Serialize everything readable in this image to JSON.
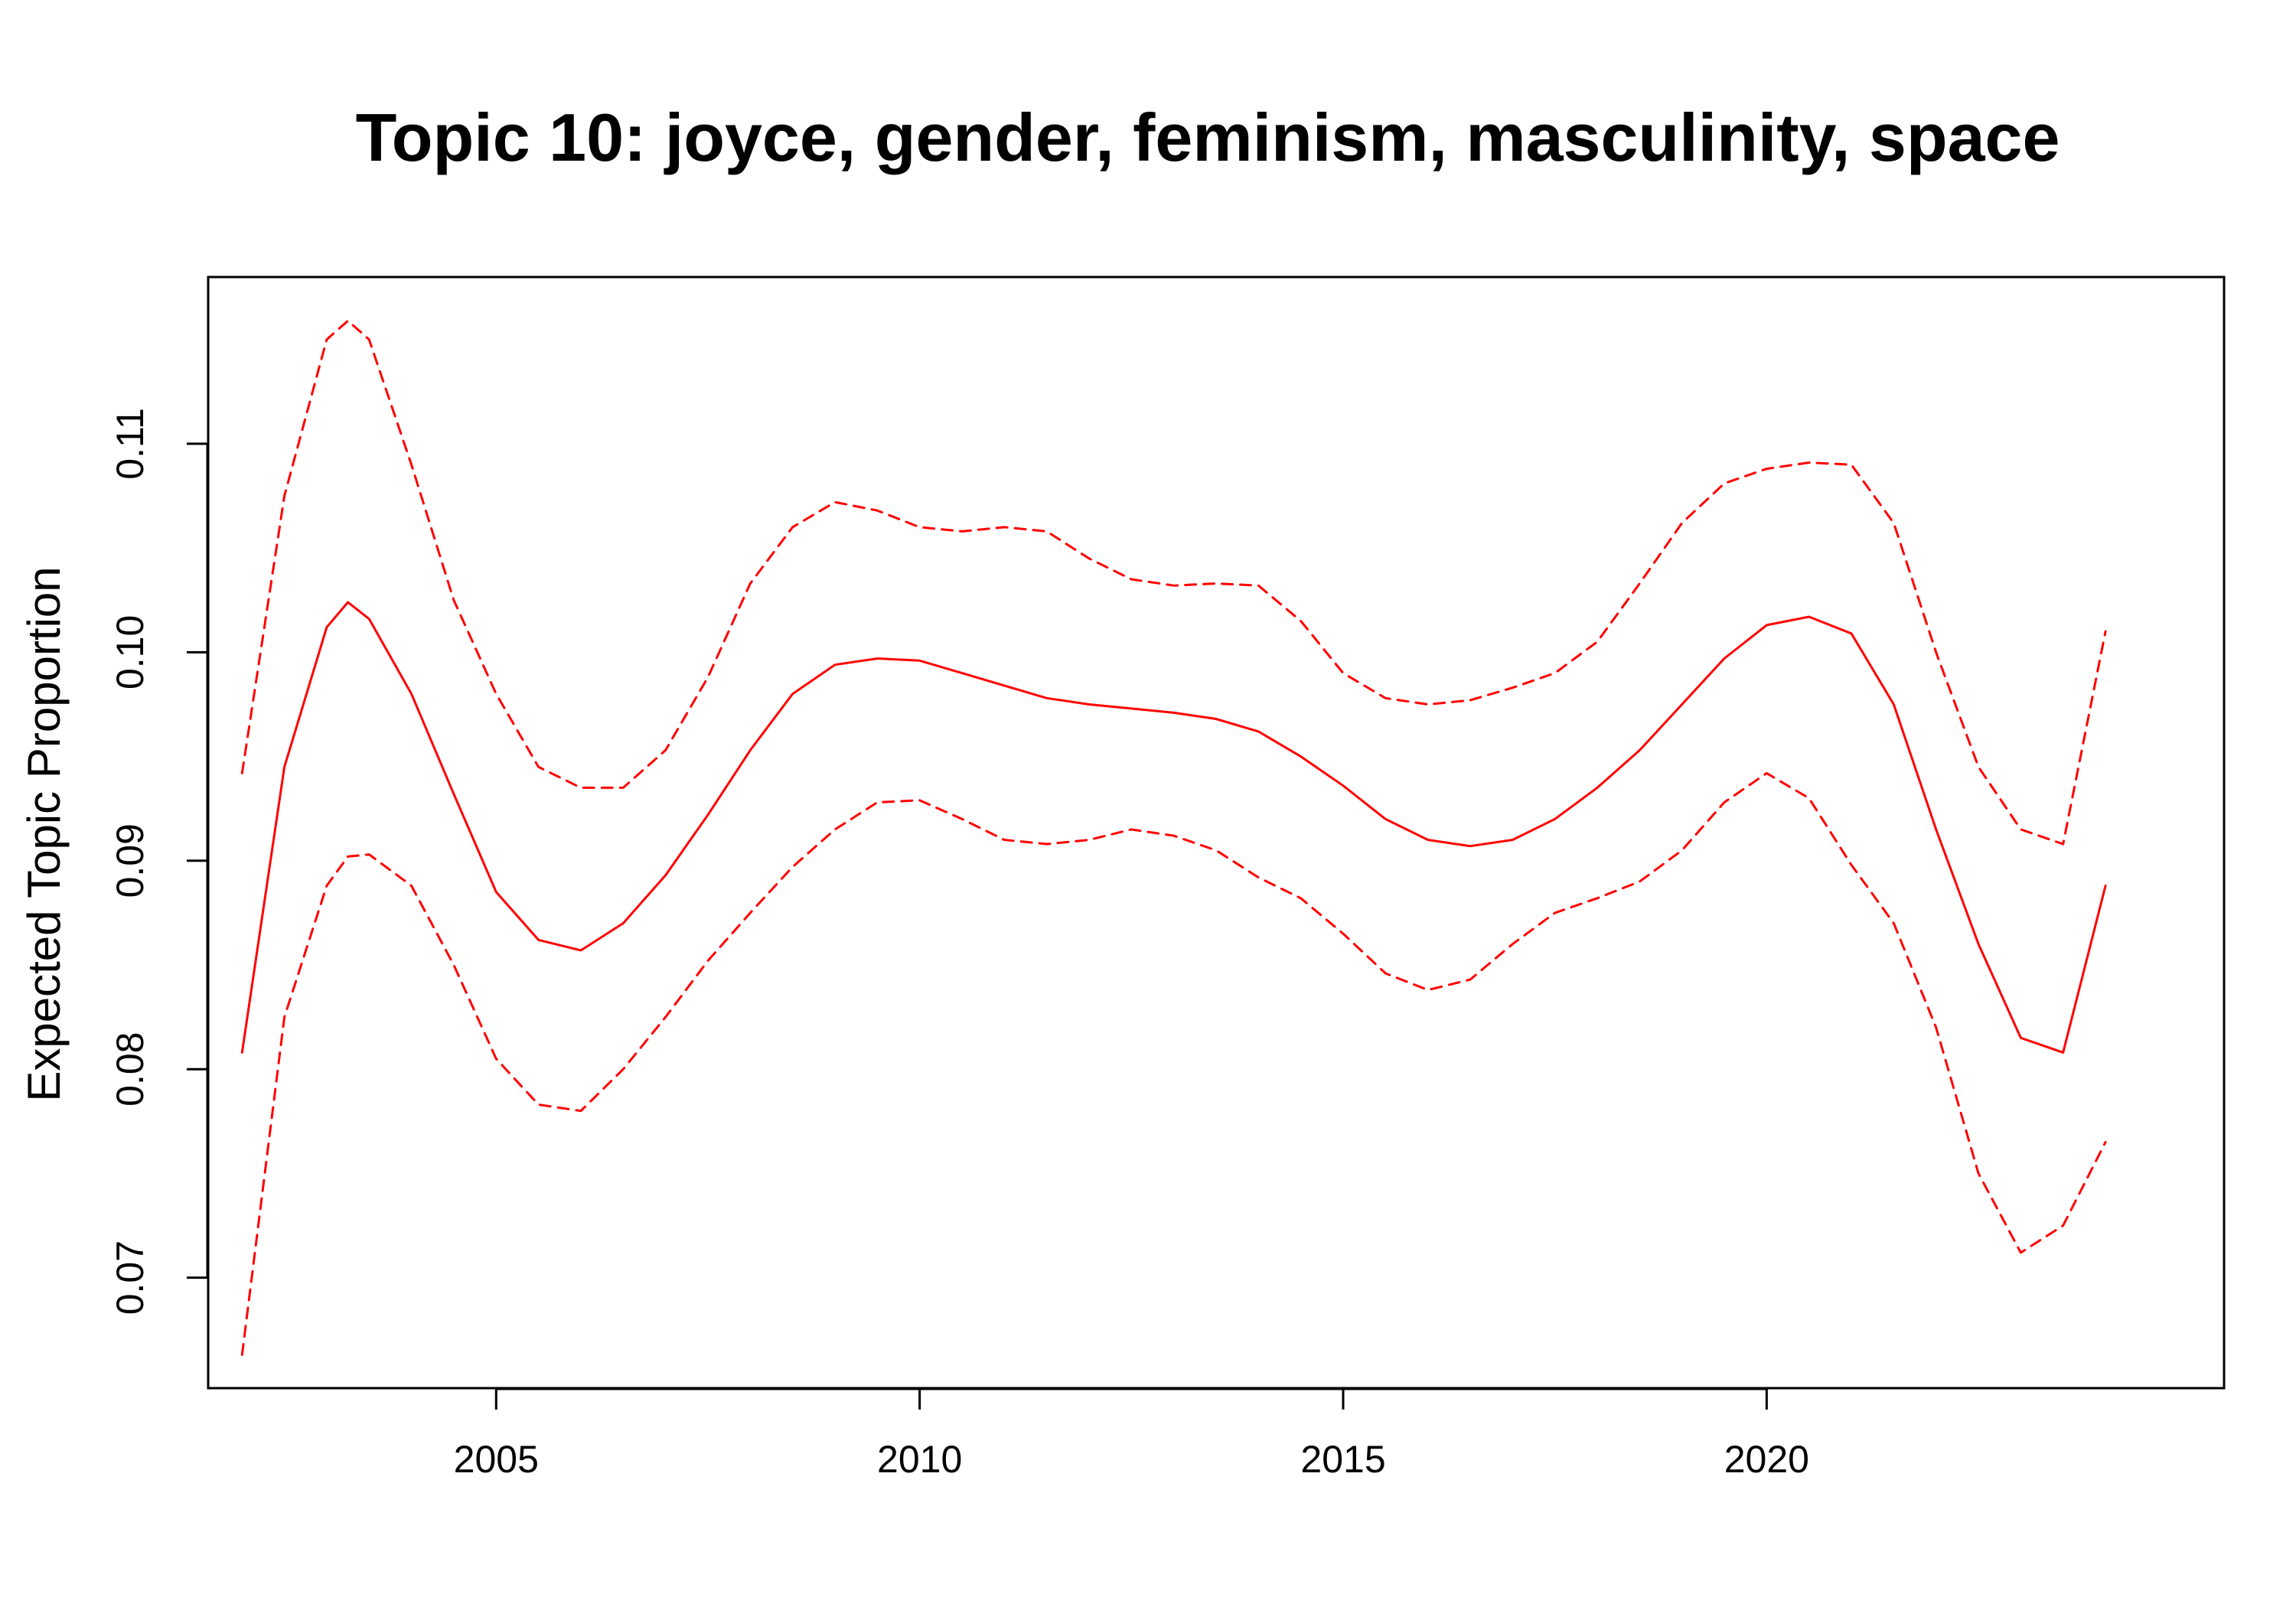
{
  "chart_data": {
    "type": "line",
    "title": "Topic 10: joyce, gender, feminism, masculinity, space",
    "xlabel": "",
    "ylabel": "Expected Topic Proportion",
    "xlim": [
      2001.6,
      2025.4
    ],
    "ylim": [
      0.0647,
      0.118
    ],
    "x_ticks": [
      2005,
      2010,
      2015,
      2020
    ],
    "x_tick_labels": [
      "2005",
      "2010",
      "2015",
      "2020"
    ],
    "y_ticks": [
      0.07,
      0.08,
      0.09,
      0.1,
      0.11
    ],
    "y_tick_labels": [
      "0.07",
      "0.08",
      "0.09",
      "0.10",
      "0.11"
    ],
    "grid": false,
    "colors": {
      "series": "#ff0000",
      "axes": "#000000"
    },
    "x": [
      2002.0,
      2002.5,
      2003.0,
      2003.25,
      2003.5,
      2004.0,
      2004.5,
      2005.0,
      2005.5,
      2006.0,
      2006.5,
      2007.0,
      2007.5,
      2008.0,
      2008.5,
      2009.0,
      2009.5,
      2010.0,
      2010.5,
      2011.0,
      2011.5,
      2012.0,
      2012.5,
      2013.0,
      2013.5,
      2014.0,
      2014.5,
      2015.0,
      2015.5,
      2016.0,
      2016.5,
      2017.0,
      2017.5,
      2018.0,
      2018.5,
      2019.0,
      2019.5,
      2020.0,
      2020.5,
      2021.0,
      2021.5,
      2022.0,
      2022.5,
      2023.0,
      2023.5,
      2024.0
    ],
    "series": [
      {
        "role": "estimate",
        "style": "solid",
        "values": [
          0.0808,
          0.0945,
          0.1012,
          0.1024,
          0.1016,
          0.098,
          0.0932,
          0.0885,
          0.0862,
          0.0857,
          0.087,
          0.0893,
          0.0922,
          0.0953,
          0.098,
          0.0994,
          0.0997,
          0.0996,
          0.099,
          0.0984,
          0.0978,
          0.0975,
          0.0973,
          0.0971,
          0.0968,
          0.0962,
          0.095,
          0.0936,
          0.092,
          0.091,
          0.0907,
          0.091,
          0.092,
          0.0935,
          0.0953,
          0.0975,
          0.0997,
          0.1013,
          0.1017,
          0.1009,
          0.0975,
          0.0915,
          0.086,
          0.0815,
          0.0808,
          0.0888
        ]
      },
      {
        "role": "upper",
        "style": "dashed",
        "values": [
          0.0942,
          0.1075,
          0.115,
          0.1159,
          0.115,
          0.109,
          0.1025,
          0.098,
          0.0945,
          0.0935,
          0.0935,
          0.0953,
          0.0988,
          0.1033,
          0.106,
          0.1072,
          0.1068,
          0.106,
          0.1058,
          0.106,
          0.1058,
          0.1045,
          0.1035,
          0.1032,
          0.1033,
          0.1032,
          0.1015,
          0.099,
          0.0978,
          0.0975,
          0.0977,
          0.0983,
          0.099,
          0.1005,
          0.1033,
          0.1062,
          0.1081,
          0.1088,
          0.1091,
          0.109,
          0.1062,
          0.1,
          0.0945,
          0.0915,
          0.0908,
          0.101
        ]
      },
      {
        "role": "lower",
        "style": "dashed",
        "values": [
          0.0663,
          0.0825,
          0.0888,
          0.0902,
          0.0903,
          0.0888,
          0.085,
          0.0805,
          0.0783,
          0.078,
          0.08,
          0.0825,
          0.0852,
          0.0875,
          0.0897,
          0.0915,
          0.0928,
          0.0929,
          0.092,
          0.091,
          0.0908,
          0.091,
          0.0915,
          0.0912,
          0.0905,
          0.0892,
          0.0882,
          0.0865,
          0.0846,
          0.0838,
          0.0843,
          0.086,
          0.0875,
          0.0882,
          0.089,
          0.0905,
          0.0928,
          0.0942,
          0.093,
          0.0898,
          0.087,
          0.082,
          0.075,
          0.0712,
          0.0725,
          0.0765
        ]
      }
    ]
  }
}
